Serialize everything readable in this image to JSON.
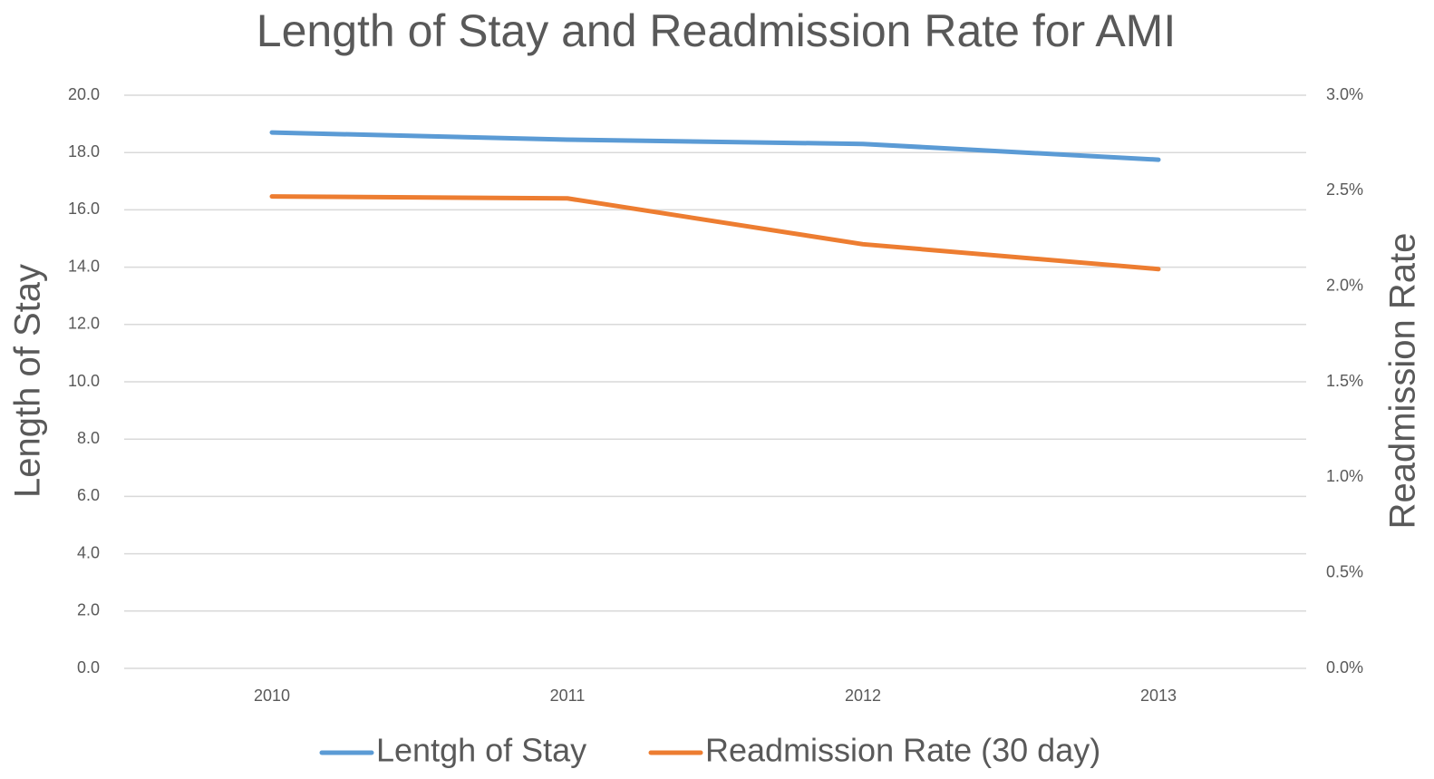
{
  "chart_data": {
    "type": "line",
    "title": "Length of Stay and Readmission Rate for AMI",
    "ylabel": "Length of Stay",
    "y2label": "Readmission Rate",
    "categories": [
      "2010",
      "2011",
      "2012",
      "2013"
    ],
    "series": [
      {
        "name": "Lentgh of Stay",
        "color": "#5b9bd5",
        "values": [
          18.7,
          18.45,
          18.3,
          17.75
        ]
      },
      {
        "name": "Readmission Rate (30 day)",
        "color": "#ed7d31",
        "axis": "y2",
        "values": [
          2.47,
          2.46,
          2.22,
          2.09
        ]
      }
    ],
    "ylim": [
      0,
      20
    ],
    "yticks": [
      {
        "value": 0,
        "label": "0.0"
      },
      {
        "value": 2,
        "label": "2.0"
      },
      {
        "value": 4,
        "label": "4.0"
      },
      {
        "value": 6,
        "label": "6.0"
      },
      {
        "value": 8,
        "label": "8.0"
      },
      {
        "value": 10,
        "label": "10.0"
      },
      {
        "value": 12,
        "label": "12.0"
      },
      {
        "value": 14,
        "label": "14.0"
      },
      {
        "value": 16,
        "label": "16.0"
      },
      {
        "value": 18,
        "label": "18.0"
      },
      {
        "value": 20,
        "label": "20.0"
      }
    ],
    "y2lim": [
      0,
      3
    ],
    "y2ticks": [
      {
        "value": 0,
        "label": "0.0%"
      },
      {
        "value": 0.5,
        "label": "0.5%"
      },
      {
        "value": 1,
        "label": "1.0%"
      },
      {
        "value": 1.5,
        "label": "1.5%"
      },
      {
        "value": 2,
        "label": "2.0%"
      },
      {
        "value": 2.5,
        "label": "2.5%"
      },
      {
        "value": 3,
        "label": "3.0%"
      }
    ],
    "grid": true,
    "legend": "bottom"
  }
}
